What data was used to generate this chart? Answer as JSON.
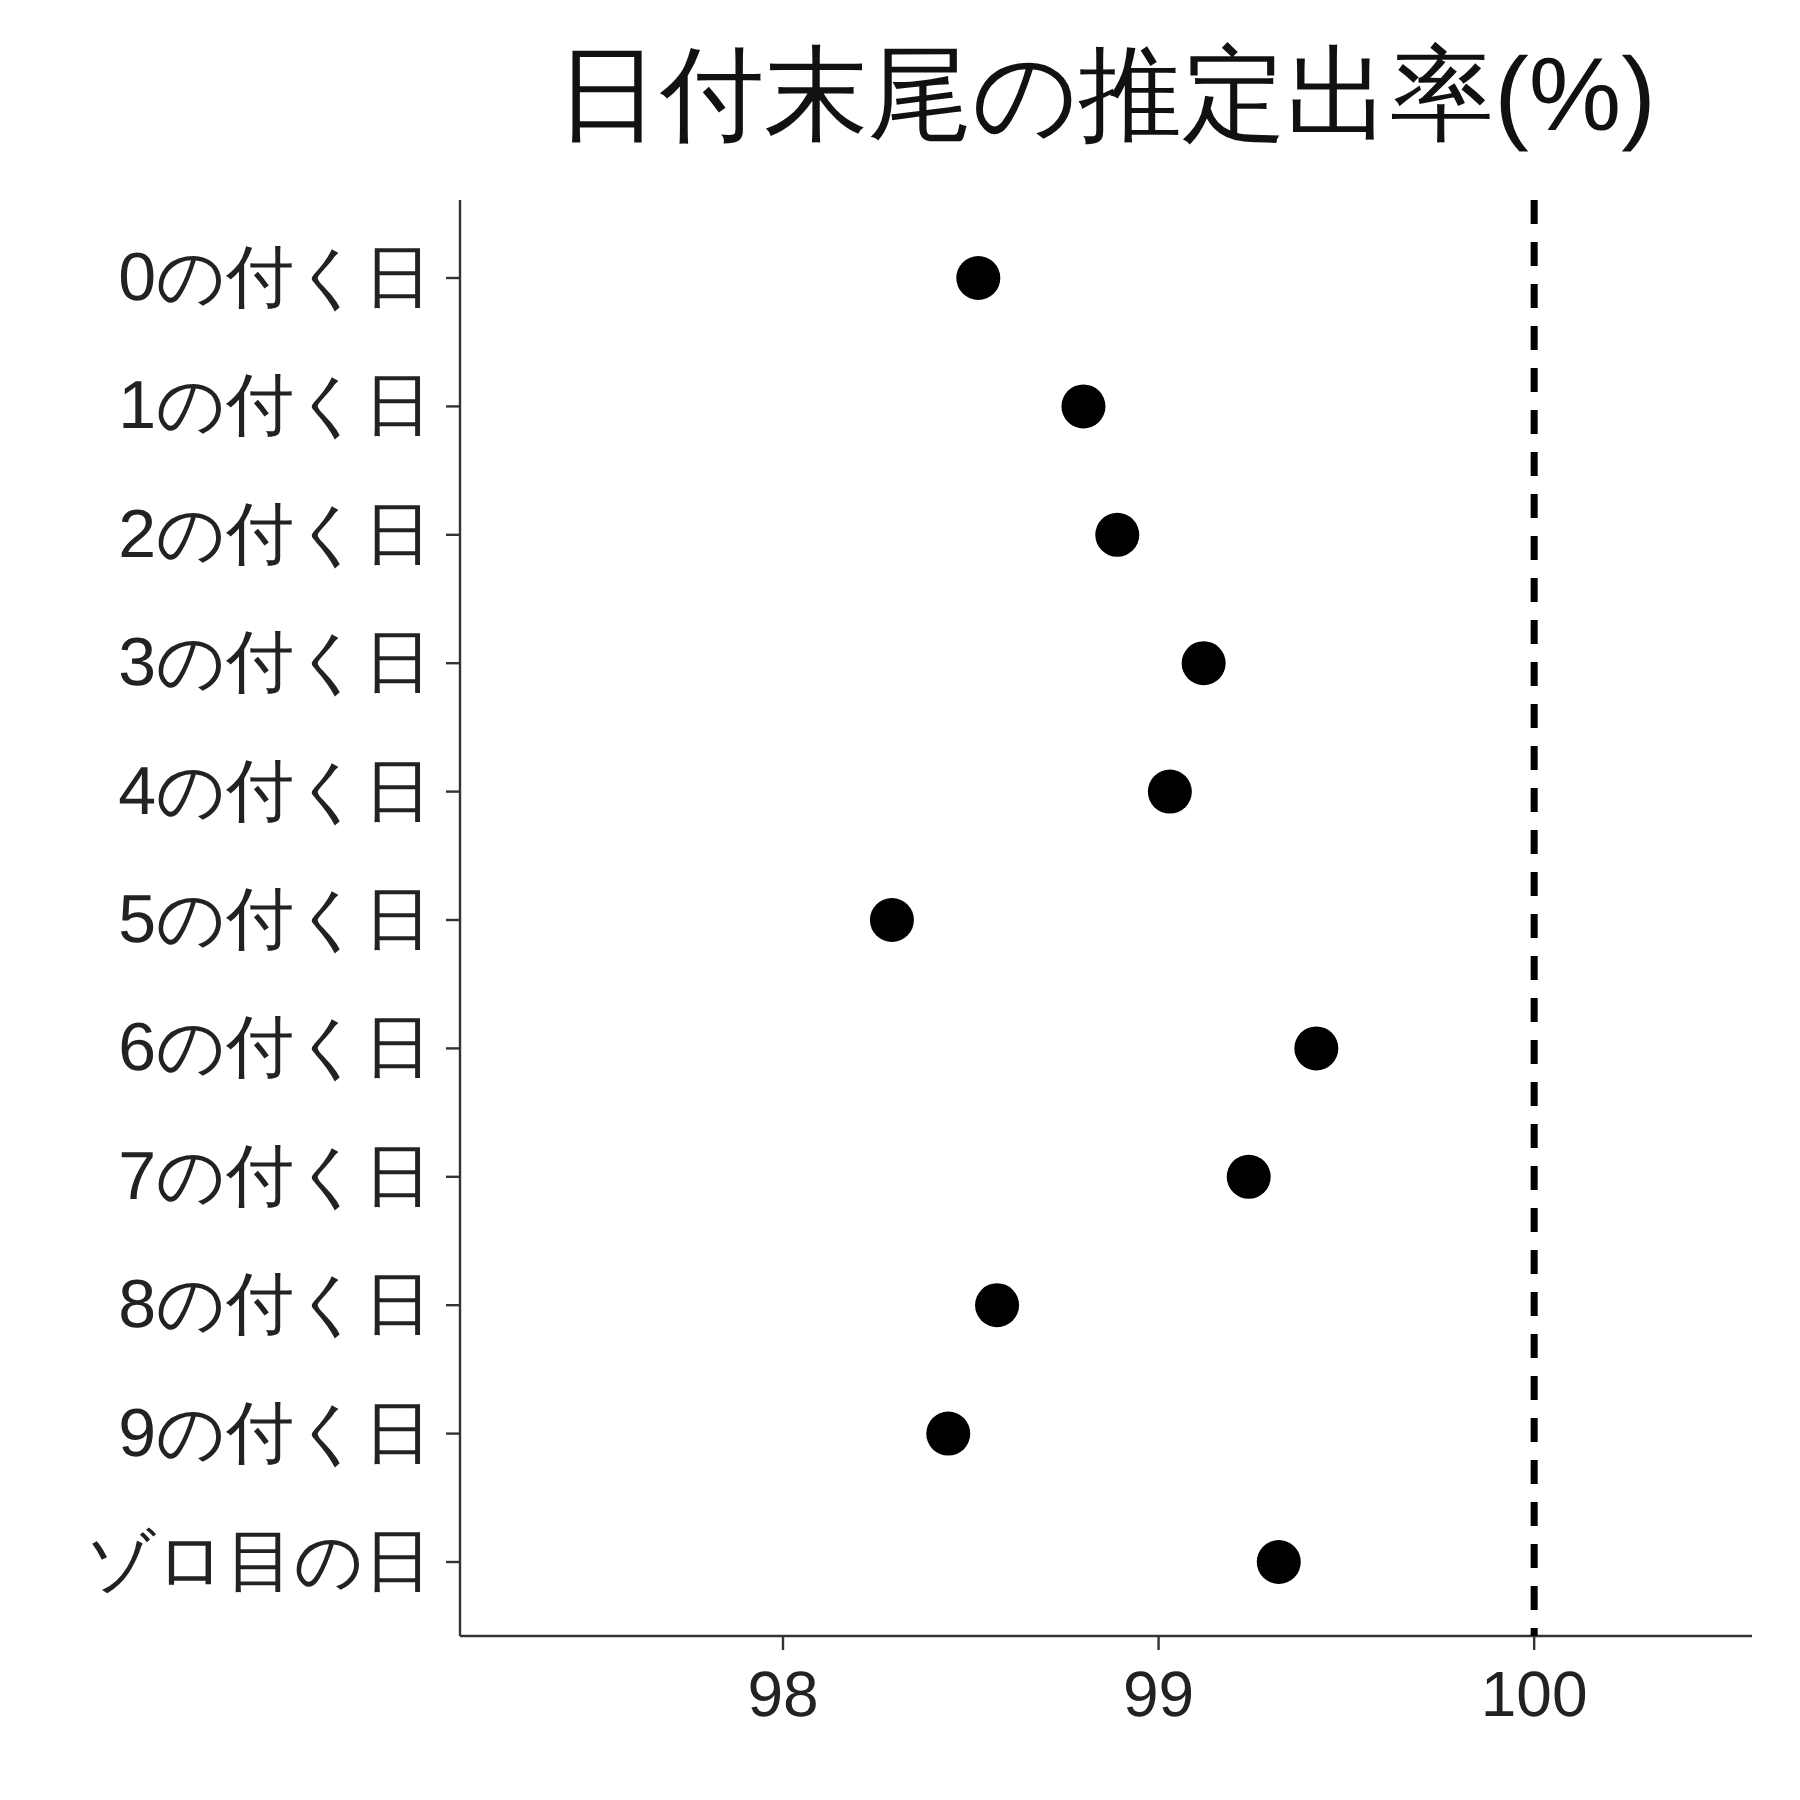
{
  "chart_data": {
    "type": "scatter",
    "orientation": "horizontal",
    "title": "日付末尾の推定出率(%)",
    "categories": [
      "0の付く日",
      "1の付く日",
      "2の付く日",
      "3の付く日",
      "4の付く日",
      "5の付く日",
      "6の付く日",
      "7の付く日",
      "8の付く日",
      "9の付く日",
      "ゾロ目の日"
    ],
    "values": [
      98.52,
      98.8,
      98.89,
      99.12,
      99.03,
      98.29,
      99.42,
      99.24,
      98.57,
      98.44,
      99.32
    ],
    "color": "#000000",
    "marker": "circle",
    "xlim": [
      97.14,
      100.58
    ],
    "xticks": [
      98,
      99,
      100
    ],
    "ref_lines": [
      {
        "axis": "x",
        "value": 100,
        "line_style": "dashed",
        "color": "#000000"
      }
    ],
    "grid": false
  }
}
